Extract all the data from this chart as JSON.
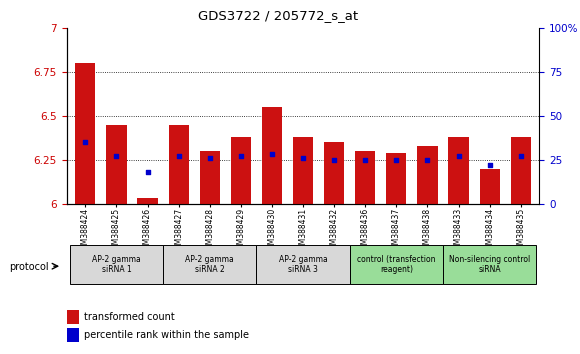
{
  "title": "GDS3722 / 205772_s_at",
  "samples": [
    "GSM388424",
    "GSM388425",
    "GSM388426",
    "GSM388427",
    "GSM388428",
    "GSM388429",
    "GSM388430",
    "GSM388431",
    "GSM388432",
    "GSM388436",
    "GSM388437",
    "GSM388438",
    "GSM388433",
    "GSM388434",
    "GSM388435"
  ],
  "transformed_count": [
    6.8,
    6.45,
    6.03,
    6.45,
    6.3,
    6.38,
    6.55,
    6.38,
    6.35,
    6.3,
    6.29,
    6.33,
    6.38,
    6.2,
    6.38
  ],
  "percentile_rank": [
    35,
    27,
    18,
    27,
    26,
    27,
    28,
    26,
    25,
    25,
    25,
    25,
    27,
    22,
    27
  ],
  "ylim_left": [
    6.0,
    7.0
  ],
  "ylim_right": [
    0,
    100
  ],
  "yticks_left": [
    6.0,
    6.25,
    6.5,
    6.75,
    7.0
  ],
  "ytick_labels_left": [
    "6",
    "6.25",
    "6.5",
    "6.75",
    "7"
  ],
  "yticks_right": [
    0,
    25,
    50,
    75,
    100
  ],
  "ytick_labels_right": [
    "0",
    "25",
    "50",
    "75",
    "100%"
  ],
  "bar_color": "#cc1111",
  "dot_color": "#0000cc",
  "bar_bottom": 6.0,
  "groups": [
    {
      "label": "AP-2 gamma\nsiRNA 1",
      "indices": [
        0,
        1,
        2
      ],
      "color": "#d8d8d8"
    },
    {
      "label": "AP-2 gamma\nsiRNA 2",
      "indices": [
        3,
        4,
        5
      ],
      "color": "#d8d8d8"
    },
    {
      "label": "AP-2 gamma\nsiRNA 3",
      "indices": [
        6,
        7,
        8
      ],
      "color": "#d8d8d8"
    },
    {
      "label": "control (transfection\nreagent)",
      "indices": [
        9,
        10,
        11
      ],
      "color": "#99dd99"
    },
    {
      "label": "Non-silencing control\nsiRNA",
      "indices": [
        12,
        13,
        14
      ],
      "color": "#99dd99"
    }
  ],
  "protocol_label": "protocol",
  "legend_bar_label": "transformed count",
  "legend_dot_label": "percentile rank within the sample",
  "tick_color_left": "#cc0000",
  "tick_color_right": "#0000cc",
  "grid_yticks": [
    6.25,
    6.5,
    6.75
  ]
}
